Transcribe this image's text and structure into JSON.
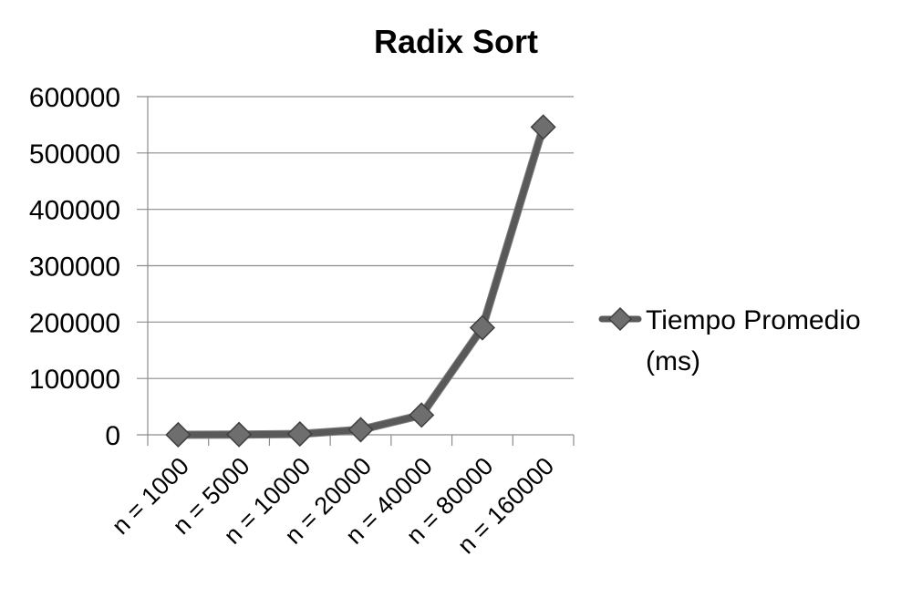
{
  "chart_data": {
    "type": "line",
    "title": "Radix Sort",
    "categories": [
      "n = 1000",
      "n = 5000",
      "n = 10000",
      "n = 20000",
      "n = 40000",
      "n = 80000",
      "n = 160000"
    ],
    "series": [
      {
        "name": "Tiempo Promedio (ms)",
        "legend_lines": [
          "Tiempo Promedio",
          "(ms)"
        ],
        "values": [
          100,
          500,
          1500,
          9000,
          35000,
          190000,
          546000
        ],
        "color": "#595959"
      }
    ],
    "ylim": [
      0,
      600000
    ],
    "yticks": [
      0,
      100000,
      200000,
      300000,
      400000,
      500000,
      600000
    ],
    "ytick_labels": [
      "0",
      "100000",
      "200000",
      "300000",
      "400000",
      "500000",
      "600000"
    ],
    "xlabel": "",
    "ylabel": "",
    "grid": true,
    "legend_position": "right",
    "marker": "diamond"
  }
}
